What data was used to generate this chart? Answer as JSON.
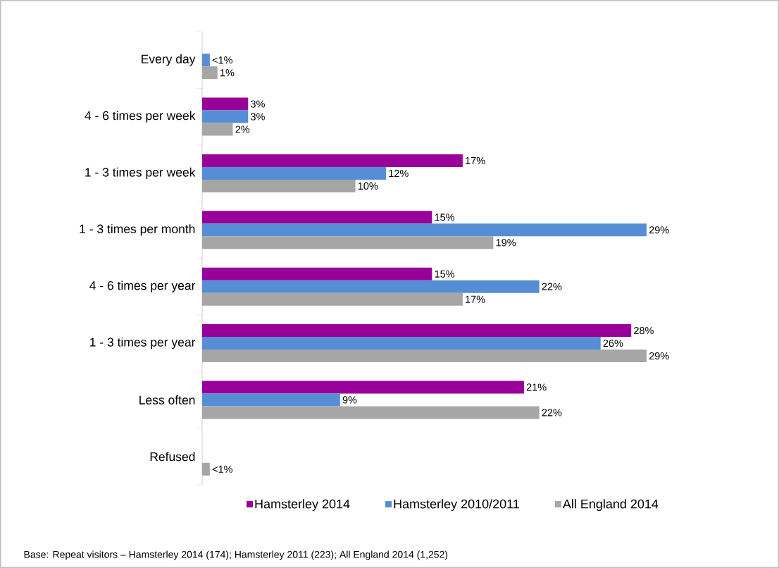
{
  "chart_data": {
    "type": "bar",
    "orientation": "horizontal",
    "categories": [
      "Every day",
      "4 - 6 times per week",
      "1 - 3 times per week",
      "1 - 3 times per month",
      "4 - 6 times per year",
      "1 - 3 times per year",
      "Less often",
      "Refused"
    ],
    "series": [
      {
        "name": "Hamsterley 2014",
        "color": "#990099",
        "values": [
          null,
          3,
          17,
          15,
          15,
          28,
          21,
          null
        ],
        "value_labels": [
          null,
          "3%",
          "17%",
          "15%",
          "15%",
          "28%",
          "21%",
          null
        ]
      },
      {
        "name": "Hamsterley 2010/2011",
        "color": "#558ed5",
        "values": [
          0.5,
          3,
          12,
          29,
          22,
          26,
          9,
          null
        ],
        "value_labels": [
          "<1%",
          "3%",
          "12%",
          "29%",
          "22%",
          "26%",
          "9%",
          null
        ]
      },
      {
        "name": "All England 2014",
        "color": "#a6a6a6",
        "values": [
          1,
          2,
          10,
          19,
          17,
          29,
          22,
          0.5
        ],
        "value_labels": [
          "1%",
          "2%",
          "10%",
          "19%",
          "17%",
          "29%",
          "22%",
          "<1%"
        ]
      }
    ],
    "legend": "bottom",
    "annotations": [
      "Base: Repeat visitors – Hamsterley 2014 (174); Hamsterley  2011 (223); All England 2014 (1,252)"
    ]
  }
}
